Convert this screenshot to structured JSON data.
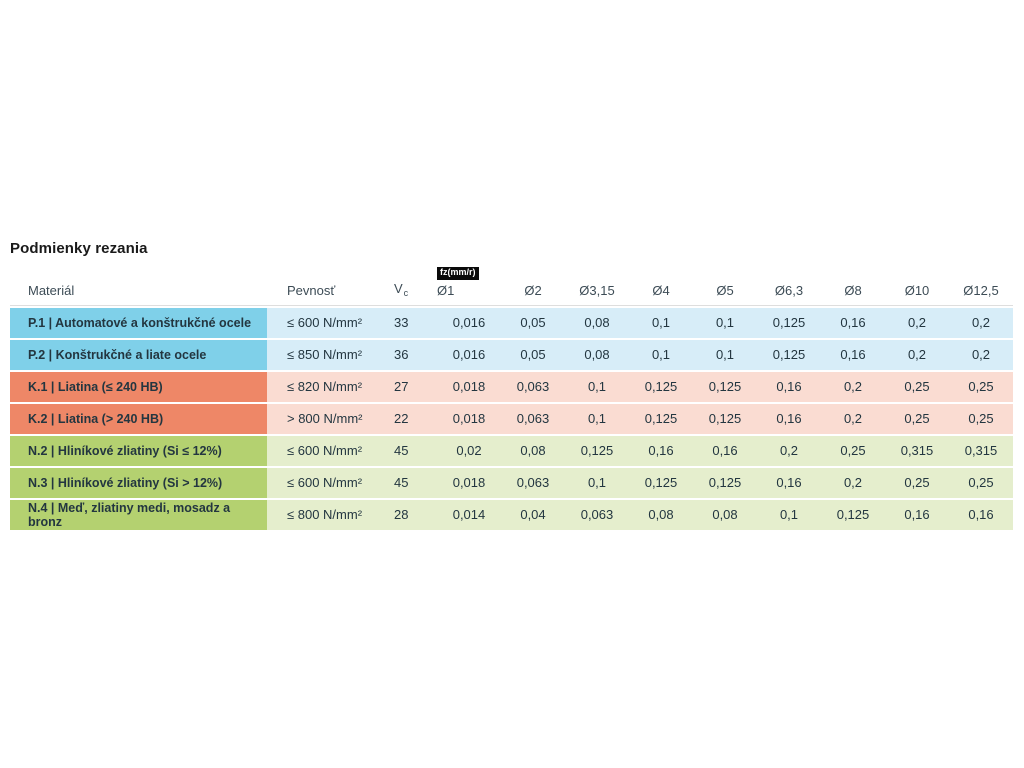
{
  "title": "Podmienky rezania",
  "colors": {
    "p-dark": "#7fd0e9",
    "p-light": "#d7edf8",
    "k-dark": "#ee8767",
    "k-light": "#fadcd2",
    "n-dark": "#b4d170",
    "n-light": "#e5eecd",
    "cell-text": "#233640",
    "header-text": "#3d4c56",
    "title-text": "#1a1a1a",
    "badge-bg": "#0a0a0a",
    "badge-text": "#ffffff"
  },
  "table": {
    "headers": {
      "material": "Materiál",
      "strength": "Pevnosť",
      "vc_label": "V",
      "vc_sub": "c",
      "fz_badge": "fz(mm/r)",
      "diameters": [
        "Ø1",
        "Ø2",
        "Ø3,15",
        "Ø4",
        "Ø5",
        "Ø6,3",
        "Ø8",
        "Ø10",
        "Ø12,5"
      ]
    },
    "rows": [
      {
        "group": "P",
        "material": "P.1 | Automatové a konštrukčné ocele",
        "strength": "≤ 600 N/mm²",
        "vc": "33",
        "fz": [
          "0,016",
          "0,05",
          "0,08",
          "0,1",
          "0,1",
          "0,125",
          "0,16",
          "0,2",
          "0,2"
        ]
      },
      {
        "group": "P",
        "material": "P.2 | Konštrukčné a liate ocele",
        "strength": "≤ 850 N/mm²",
        "vc": "36",
        "fz": [
          "0,016",
          "0,05",
          "0,08",
          "0,1",
          "0,1",
          "0,125",
          "0,16",
          "0,2",
          "0,2"
        ]
      },
      {
        "group": "K",
        "material": "K.1 | Liatina (≤ 240 HB)",
        "strength": "≤ 820 N/mm²",
        "vc": "27",
        "fz": [
          "0,018",
          "0,063",
          "0,1",
          "0,125",
          "0,125",
          "0,16",
          "0,2",
          "0,25",
          "0,25"
        ]
      },
      {
        "group": "K",
        "material": "K.2 | Liatina (> 240 HB)",
        "strength": "> 800 N/mm²",
        "vc": "22",
        "fz": [
          "0,018",
          "0,063",
          "0,1",
          "0,125",
          "0,125",
          "0,16",
          "0,2",
          "0,25",
          "0,25"
        ]
      },
      {
        "group": "N",
        "material": "N.2 | Hliníkové zliatiny (Si ≤ 12%)",
        "strength": "≤ 600 N/mm²",
        "vc": "45",
        "fz": [
          "0,02",
          "0,08",
          "0,125",
          "0,16",
          "0,16",
          "0,2",
          "0,25",
          "0,315",
          "0,315"
        ]
      },
      {
        "group": "N",
        "material": "N.3 | Hliníkové zliatiny (Si > 12%)",
        "strength": "≤ 600 N/mm²",
        "vc": "45",
        "fz": [
          "0,018",
          "0,063",
          "0,1",
          "0,125",
          "0,125",
          "0,16",
          "0,2",
          "0,25",
          "0,25"
        ]
      },
      {
        "group": "N",
        "material": "N.4 | Meď, zliatiny medi, mosadz a bronz",
        "strength": "≤ 800 N/mm²",
        "vc": "28",
        "fz": [
          "0,014",
          "0,04",
          "0,063",
          "0,08",
          "0,08",
          "0,1",
          "0,125",
          "0,16",
          "0,16"
        ]
      }
    ]
  }
}
